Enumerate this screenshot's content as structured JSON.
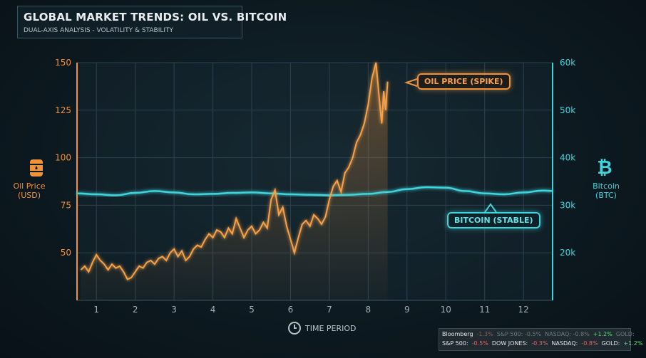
{
  "header": {
    "title": "GLOBAL MARKET TRENDS: OIL VS. BITCOIN",
    "subtitle": "DUAL-AXIS ANALYSIS - VOLATILITY & STABILITY"
  },
  "axes": {
    "left_label_line1": "Oil Price",
    "left_label_line2": "(USD)",
    "right_label_line1": "Bitcoin",
    "right_label_line2": "(BTC)",
    "x_label": "TIME PERIOD",
    "left_icon": "oil-barrel-icon",
    "right_icon": "bitcoin-icon",
    "x_icon": "clock-icon"
  },
  "callouts": {
    "oil": "OIL PRICE (SPIKE)",
    "btc": "BITCOIN (STABLE)"
  },
  "colors": {
    "oil": "#f0923a",
    "btc": "#3fd4dc",
    "background": "#0d1a21"
  },
  "chart_data": {
    "type": "line",
    "title": "GLOBAL MARKET TRENDS: OIL VS. BITCOIN",
    "subtitle": "DUAL-AXIS ANALYSIS - VOLATILITY & STABILITY",
    "xlabel": "TIME PERIOD",
    "ylabel_left": "Oil Price (USD)",
    "ylabel_right": "Bitcoin (BTC)",
    "x_ticks": [
      1,
      2,
      3,
      4,
      5,
      6,
      7,
      8,
      9,
      10,
      11,
      12
    ],
    "xlim": [
      0.5,
      12.75
    ],
    "ylim_left": [
      25,
      150
    ],
    "y_ticks_left": [
      50,
      75,
      100,
      125,
      150
    ],
    "ylim_right": [
      10000,
      60000
    ],
    "y_ticks_right": [
      20000,
      30000,
      40000,
      50000,
      60000
    ],
    "y_tick_labels_right": [
      "20k",
      "30k",
      "40k",
      "50k",
      "60k"
    ],
    "grid": true,
    "series": [
      {
        "name": "OIL PRICE (SPIKE)",
        "axis": "left",
        "x": [
          0.6,
          0.7,
          0.8,
          0.9,
          1.0,
          1.1,
          1.2,
          1.3,
          1.4,
          1.5,
          1.6,
          1.7,
          1.8,
          1.9,
          2.0,
          2.1,
          2.2,
          2.3,
          2.4,
          2.5,
          2.6,
          2.7,
          2.8,
          2.9,
          3.0,
          3.1,
          3.2,
          3.3,
          3.4,
          3.5,
          3.6,
          3.7,
          3.8,
          3.9,
          4.0,
          4.1,
          4.2,
          4.3,
          4.4,
          4.5,
          4.6,
          4.7,
          4.8,
          4.9,
          5.0,
          5.1,
          5.2,
          5.3,
          5.4,
          5.5,
          5.6,
          5.7,
          5.8,
          5.9,
          6.0,
          6.1,
          6.2,
          6.3,
          6.4,
          6.5,
          6.6,
          6.7,
          6.8,
          6.9,
          7.0,
          7.1,
          7.2,
          7.3,
          7.4,
          7.5,
          7.6,
          7.7,
          7.8,
          7.9,
          8.0,
          8.1,
          8.2,
          8.3,
          8.35,
          8.4,
          8.45,
          8.5
        ],
        "y": [
          41,
          43,
          40,
          45,
          49,
          46,
          44,
          41,
          44,
          42,
          43,
          40,
          36,
          37,
          40,
          43,
          42,
          45,
          46,
          44,
          47,
          48,
          46,
          50,
          52,
          48,
          51,
          46,
          48,
          52,
          54,
          53,
          57,
          60,
          58,
          62,
          61,
          58,
          63,
          60,
          68,
          63,
          58,
          62,
          64,
          60,
          62,
          66,
          63,
          78,
          83,
          70,
          74,
          64,
          57,
          50,
          58,
          65,
          67,
          64,
          70,
          68,
          65,
          69,
          78,
          85,
          88,
          82,
          92,
          95,
          100,
          108,
          112,
          118,
          128,
          142,
          152,
          128,
          118,
          135,
          125,
          140
        ]
      },
      {
        "name": "BITCOIN (STABLE)",
        "axis": "right",
        "x": [
          0.5,
          1.0,
          1.5,
          2.0,
          2.5,
          3.0,
          3.5,
          4.0,
          4.5,
          5.0,
          5.5,
          6.0,
          6.5,
          7.0,
          7.5,
          8.0,
          8.5,
          9.0,
          9.5,
          10.0,
          10.5,
          11.0,
          11.5,
          12.0,
          12.5,
          12.75
        ],
        "y": [
          32500,
          32300,
          32100,
          32600,
          33000,
          32700,
          32300,
          32400,
          32600,
          32700,
          32500,
          32300,
          32200,
          32100,
          32200,
          32400,
          32800,
          33400,
          33800,
          33700,
          33000,
          32500,
          32300,
          32700,
          33100,
          33000
        ]
      }
    ],
    "annotations": [
      "OIL PRICE (SPIKE)",
      "BITCOIN (STABLE)"
    ]
  },
  "ticker": {
    "row1": [
      {
        "text": "Bloomberg",
        "tone": "plain"
      },
      {
        "text": "-1.3%",
        "tone": "dimneg"
      },
      {
        "text": "S&P 500: -0.5%",
        "tone": "dim"
      },
      {
        "text": "NASDAQ: -0.8%",
        "tone": "dim"
      },
      {
        "text": "+1.2%",
        "tone": "pos"
      },
      {
        "text": "GOLD:",
        "tone": "dim"
      }
    ],
    "row2": [
      {
        "text": "S&P 500:",
        "tone": "plain"
      },
      {
        "text": "-0.5%",
        "tone": "neg"
      },
      {
        "text": "DOW JONES:",
        "tone": "plain"
      },
      {
        "text": "-0.3%",
        "tone": "neg"
      },
      {
        "text": "NASDAQ:",
        "tone": "plain"
      },
      {
        "text": "-0.8%",
        "tone": "neg"
      },
      {
        "text": "GOLD:",
        "tone": "plain"
      },
      {
        "text": "+1.2%",
        "tone": "pos"
      }
    ]
  }
}
